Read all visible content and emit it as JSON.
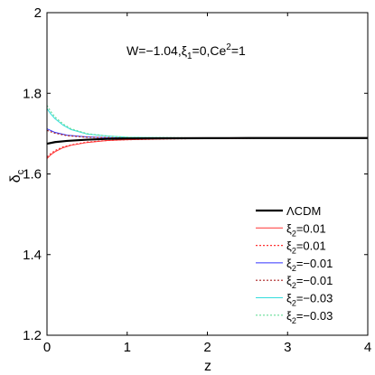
{
  "chart_data": {
    "type": "line",
    "annotation": "W=-1.04,ξ₁=0,Ce²=1",
    "xlabel": "z",
    "ylabel": "δc",
    "xlim": [
      0,
      4
    ],
    "ylim": [
      1.2,
      2.0
    ],
    "xticks": [
      0,
      1,
      2,
      3,
      4
    ],
    "yticks": [
      1.2,
      1.4,
      1.6,
      1.8,
      2.0
    ],
    "xtick_labels": [
      "0",
      "1",
      "2",
      "3",
      "4"
    ],
    "ytick_labels": [
      "1.2",
      "1.4",
      "1.6",
      "1.8",
      "2"
    ],
    "grid": false,
    "legend_position": "right",
    "series": [
      {
        "name": "ΛCDM",
        "color": "#000000",
        "dash": "solid",
        "width": 2.2,
        "x": [
          0,
          0.1,
          0.25,
          0.5,
          0.75,
          1,
          1.5,
          2,
          2.5,
          3,
          4
        ],
        "y": [
          1.675,
          1.679,
          1.682,
          1.685,
          1.687,
          1.688,
          1.6885,
          1.6888,
          1.689,
          1.689,
          1.689
        ]
      },
      {
        "name": "ξ₂=0.01",
        "color": "#ff3333",
        "dash": "solid",
        "width": 1,
        "x": [
          0,
          0.05,
          0.1,
          0.2,
          0.3,
          0.5,
          0.75,
          1,
          1.5,
          2,
          3,
          4
        ],
        "y": [
          1.638,
          1.648,
          1.655,
          1.665,
          1.671,
          1.678,
          1.683,
          1.685,
          1.687,
          1.688,
          1.689,
          1.689
        ]
      },
      {
        "name": "ξ₂=0.01",
        "color": "#ff3333",
        "dash": "dotted",
        "width": 1.2,
        "x": [
          0,
          0.05,
          0.1,
          0.2,
          0.3,
          0.5,
          0.75,
          1,
          1.5,
          2,
          3,
          4
        ],
        "y": [
          1.642,
          1.651,
          1.658,
          1.667,
          1.672,
          1.679,
          1.683,
          1.685,
          1.687,
          1.688,
          1.689,
          1.689
        ]
      },
      {
        "name": "ξ₂=−0.01",
        "color": "#3333ff",
        "dash": "solid",
        "width": 1,
        "x": [
          0,
          0.1,
          0.25,
          0.5,
          0.75,
          1,
          1.5,
          2,
          3,
          4
        ],
        "y": [
          1.712,
          1.703,
          1.696,
          1.692,
          1.69,
          1.689,
          1.689,
          1.689,
          1.689,
          1.689
        ]
      },
      {
        "name": "ξ₂=−0.01",
        "color": "#aa2222",
        "dash": "dotted",
        "width": 1.2,
        "x": [
          0,
          0.1,
          0.25,
          0.5,
          0.75,
          1,
          1.5,
          2,
          3,
          4
        ],
        "y": [
          1.708,
          1.701,
          1.695,
          1.691,
          1.69,
          1.689,
          1.689,
          1.689,
          1.689,
          1.689
        ]
      },
      {
        "name": "ξ₂=−0.03",
        "color": "#33dddd",
        "dash": "solid",
        "width": 1,
        "x": [
          0,
          0.05,
          0.1,
          0.2,
          0.3,
          0.5,
          0.75,
          1,
          1.5,
          2,
          3,
          4
        ],
        "y": [
          1.762,
          1.748,
          1.737,
          1.721,
          1.71,
          1.699,
          1.694,
          1.691,
          1.69,
          1.689,
          1.689,
          1.689
        ]
      },
      {
        "name": "ξ₂=−0.03",
        "color": "#66dd99",
        "dash": "dotted",
        "width": 1.2,
        "x": [
          0,
          0.05,
          0.1,
          0.2,
          0.3,
          0.5,
          0.75,
          1,
          1.5,
          2,
          3,
          4
        ],
        "y": [
          1.77,
          1.754,
          1.741,
          1.724,
          1.712,
          1.7,
          1.694,
          1.691,
          1.69,
          1.689,
          1.689,
          1.689
        ]
      }
    ]
  }
}
